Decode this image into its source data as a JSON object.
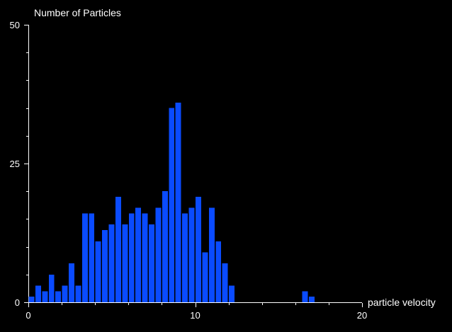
{
  "chart_data": {
    "type": "bar",
    "title": "",
    "xlabel": "particle velocity",
    "ylabel": "Number of Particles",
    "xlim": [
      0,
      20
    ],
    "ylim": [
      0,
      50
    ],
    "x_ticks": [
      "0",
      "10",
      "20"
    ],
    "y_ticks": [
      "0",
      "25",
      "50"
    ],
    "bin_width": 0.4,
    "grid": false,
    "bar_color": "#0a4bff",
    "background": "#000000",
    "bins": [
      {
        "x": 0.2,
        "value": 1
      },
      {
        "x": 0.6,
        "value": 3
      },
      {
        "x": 1.0,
        "value": 2
      },
      {
        "x": 1.4,
        "value": 5
      },
      {
        "x": 1.8,
        "value": 2
      },
      {
        "x": 2.2,
        "value": 3
      },
      {
        "x": 2.6,
        "value": 7
      },
      {
        "x": 3.0,
        "value": 3
      },
      {
        "x": 3.4,
        "value": 16
      },
      {
        "x": 3.8,
        "value": 16
      },
      {
        "x": 4.2,
        "value": 11
      },
      {
        "x": 4.6,
        "value": 13
      },
      {
        "x": 5.0,
        "value": 14
      },
      {
        "x": 5.4,
        "value": 19
      },
      {
        "x": 5.8,
        "value": 14
      },
      {
        "x": 6.2,
        "value": 16
      },
      {
        "x": 6.6,
        "value": 17
      },
      {
        "x": 7.0,
        "value": 16
      },
      {
        "x": 7.4,
        "value": 14
      },
      {
        "x": 7.8,
        "value": 17
      },
      {
        "x": 8.2,
        "value": 20
      },
      {
        "x": 8.6,
        "value": 35
      },
      {
        "x": 9.0,
        "value": 36
      },
      {
        "x": 9.4,
        "value": 16
      },
      {
        "x": 9.8,
        "value": 17
      },
      {
        "x": 10.2,
        "value": 19
      },
      {
        "x": 10.6,
        "value": 9
      },
      {
        "x": 11.0,
        "value": 17
      },
      {
        "x": 11.4,
        "value": 11
      },
      {
        "x": 11.8,
        "value": 7
      },
      {
        "x": 12.2,
        "value": 3
      },
      {
        "x": 16.6,
        "value": 2
      },
      {
        "x": 17.0,
        "value": 1
      }
    ]
  }
}
